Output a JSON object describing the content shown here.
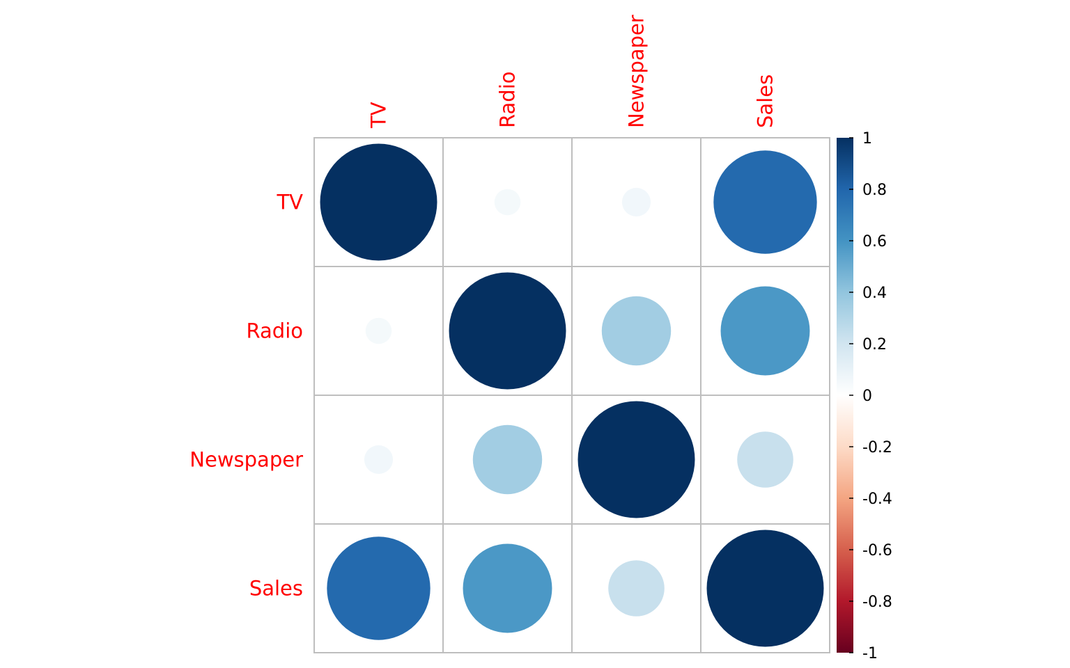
{
  "chart_data": {
    "type": "heatmap",
    "variables": [
      "TV",
      "Radio",
      "Newspaper",
      "Sales"
    ],
    "matrix": [
      [
        1.0,
        0.05,
        0.06,
        0.78
      ],
      [
        0.05,
        1.0,
        0.35,
        0.58
      ],
      [
        0.06,
        0.35,
        1.0,
        0.23
      ],
      [
        0.78,
        0.58,
        0.23,
        1.0
      ]
    ],
    "colorbar": {
      "range": [
        -1,
        1
      ],
      "ticks": [
        1,
        0.8,
        0.6,
        0.4,
        0.2,
        0,
        -0.2,
        -0.4,
        -0.6,
        -0.8,
        -1
      ],
      "tick_labels": [
        "1",
        "0.8",
        "0.6",
        "0.4",
        "0.2",
        "0",
        "-0.2",
        "-0.4",
        "-0.6",
        "-0.8",
        "-1"
      ],
      "colors": [
        "#67001F",
        "#B2182B",
        "#D6604D",
        "#F4A582",
        "#FDDBC7",
        "#FFFFFF",
        "#D1E5F0",
        "#92C5DE",
        "#4393C3",
        "#2166AC",
        "#053061"
      ]
    },
    "label_color": "#FF0000",
    "grid_color": "#BEBEBE",
    "grid": true,
    "legend_position": "right"
  }
}
